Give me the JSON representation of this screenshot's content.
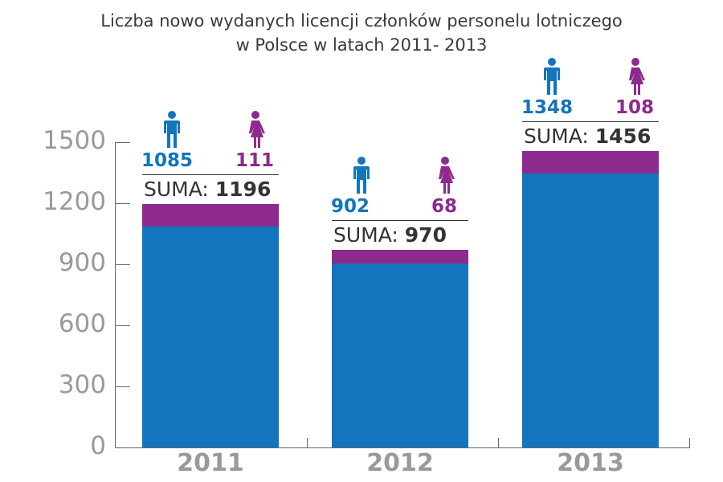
{
  "title_line1": "Liczba nowo wydanych licencji członków personelu lotniczego",
  "title_line2": "w Polsce w latach 2011- 2013",
  "colors": {
    "men": "#1275BD",
    "women": "#8E2A8D",
    "axis_text": "#999999",
    "title": "#3a3a3a"
  },
  "y_ticks": [
    "0",
    "300",
    "600",
    "900",
    "1200",
    "1500"
  ],
  "suma_label": "SUMA:",
  "years": [
    {
      "year": "2011",
      "men": "1085",
      "women": "111",
      "total": "1196"
    },
    {
      "year": "2012",
      "men": "902",
      "women": "68",
      "total": "970"
    },
    {
      "year": "2013",
      "men": "1348",
      "women": "108",
      "total": "1456"
    }
  ],
  "icons": {
    "men": "man-icon",
    "women": "woman-icon"
  },
  "chart_data": {
    "type": "bar",
    "stacked": true,
    "title": "Liczba nowo wydanych licencji członków personelu lotniczego w Polsce w latach 2011- 2013",
    "categories": [
      "2011",
      "2012",
      "2013"
    ],
    "series": [
      {
        "name": "Mężczyźni",
        "color": "#1275BD",
        "values": [
          1085,
          902,
          1348
        ]
      },
      {
        "name": "Kobiety",
        "color": "#8E2A8D",
        "values": [
          111,
          68,
          108
        ]
      }
    ],
    "totals": [
      1196,
      970,
      1456
    ],
    "xlabel": "",
    "ylabel": "",
    "ylim": [
      0,
      1500
    ],
    "yticks": [
      0,
      300,
      600,
      900,
      1200,
      1500
    ],
    "grid": false,
    "legend": "icons above bars"
  }
}
